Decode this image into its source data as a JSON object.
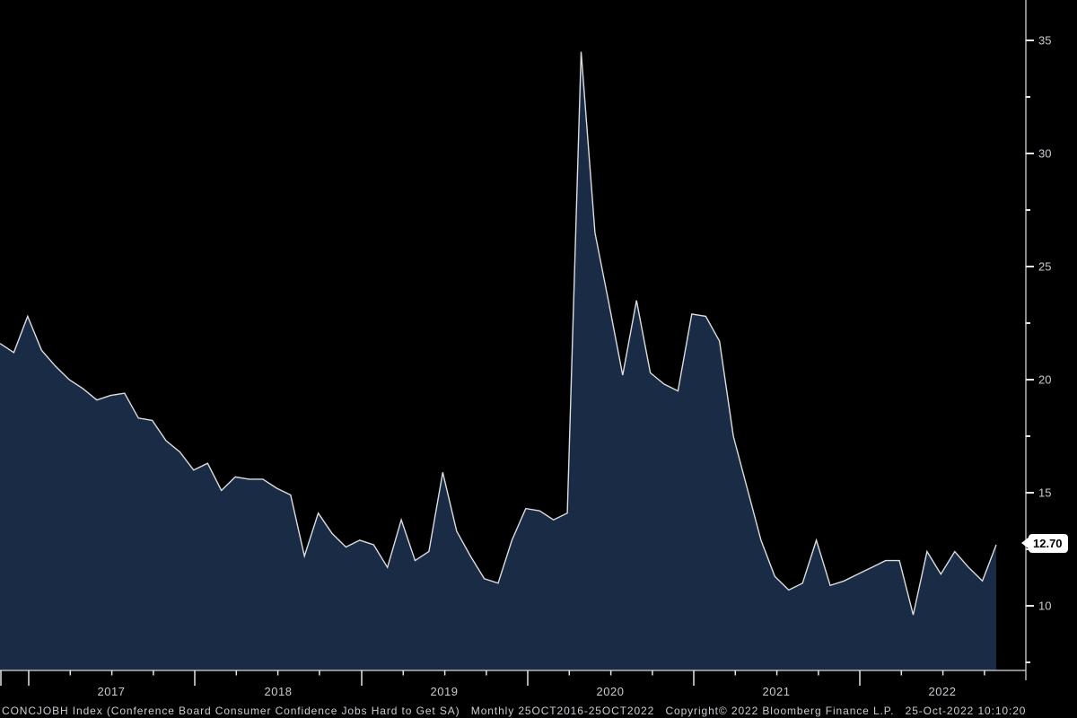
{
  "chart_data": {
    "type": "area",
    "title": "CONCJOBH Index (Conference Board Consumer Confidence Jobs Hard to Get SA)",
    "series_name": "CONCJOBH Index",
    "frequency": "Monthly",
    "date_range": "25OCT2016-25OCT2022",
    "grid": "off",
    "legend": "none",
    "ylim": [
      7.1,
      36.8
    ],
    "y_ticks_major": [
      35,
      30,
      25,
      20,
      15,
      10
    ],
    "y_ticks_minor": [
      32.5,
      27.5,
      22.5,
      17.5,
      12.5,
      7.5
    ],
    "x_year_labels": [
      "2017",
      "2018",
      "2019",
      "2020",
      "2021",
      "2022"
    ],
    "last_value": 12.7,
    "last_value_label": "12.70",
    "x": [
      "2016-10",
      "2016-11",
      "2016-12",
      "2017-01",
      "2017-02",
      "2017-03",
      "2017-04",
      "2017-05",
      "2017-06",
      "2017-07",
      "2017-08",
      "2017-09",
      "2017-10",
      "2017-11",
      "2017-12",
      "2018-01",
      "2018-02",
      "2018-03",
      "2018-04",
      "2018-05",
      "2018-06",
      "2018-07",
      "2018-08",
      "2018-09",
      "2018-10",
      "2018-11",
      "2018-12",
      "2019-01",
      "2019-02",
      "2019-03",
      "2019-04",
      "2019-05",
      "2019-06",
      "2019-07",
      "2019-08",
      "2019-09",
      "2019-10",
      "2019-11",
      "2019-12",
      "2020-01",
      "2020-02",
      "2020-03",
      "2020-04",
      "2020-05",
      "2020-06",
      "2020-07",
      "2020-08",
      "2020-09",
      "2020-10",
      "2020-11",
      "2020-12",
      "2021-01",
      "2021-02",
      "2021-03",
      "2021-04",
      "2021-05",
      "2021-06",
      "2021-07",
      "2021-08",
      "2021-09",
      "2021-10",
      "2021-11",
      "2021-12",
      "2022-01",
      "2022-02",
      "2022-03",
      "2022-04",
      "2022-05",
      "2022-06",
      "2022-07",
      "2022-08",
      "2022-09",
      "2022-10"
    ],
    "values": [
      21.6,
      21.2,
      22.8,
      21.3,
      20.6,
      20.0,
      19.6,
      19.1,
      19.3,
      19.4,
      18.3,
      18.2,
      17.3,
      16.8,
      16.0,
      16.3,
      15.1,
      15.7,
      15.6,
      15.6,
      15.2,
      14.9,
      12.2,
      14.1,
      13.2,
      12.6,
      12.9,
      12.7,
      11.7,
      13.8,
      12.0,
      12.4,
      15.9,
      13.3,
      12.2,
      11.2,
      11.0,
      12.9,
      14.3,
      14.2,
      13.8,
      14.1,
      34.5,
      26.5,
      23.4,
      20.2,
      23.5,
      20.3,
      19.8,
      19.5,
      22.9,
      22.8,
      21.7,
      17.5,
      15.2,
      12.9,
      11.3,
      10.7,
      11.0,
      12.9,
      10.9,
      11.1,
      11.4,
      11.7,
      12.0,
      12.0,
      9.6,
      12.4,
      11.4,
      12.4,
      11.7,
      11.1,
      12.7
    ],
    "colors": {
      "background": "#000000",
      "fill": "#1a2b45",
      "line": "#dcdddf",
      "axis": "#b5b8bc",
      "tick": "#e6e6e6",
      "label": "#c6cad1",
      "marker_bg": "#ffffff",
      "marker_text": "#000000"
    }
  },
  "footer": {
    "security": "CONCJOBH Index (Conference Board Consumer Confidence Jobs Hard to Get SA)",
    "frequency_range": "Monthly 25OCT2016-25OCT2022",
    "copyright": "Copyright© 2022 Bloomberg Finance L.P.",
    "timestamp": "25-Oct-2022 10:10:20"
  }
}
